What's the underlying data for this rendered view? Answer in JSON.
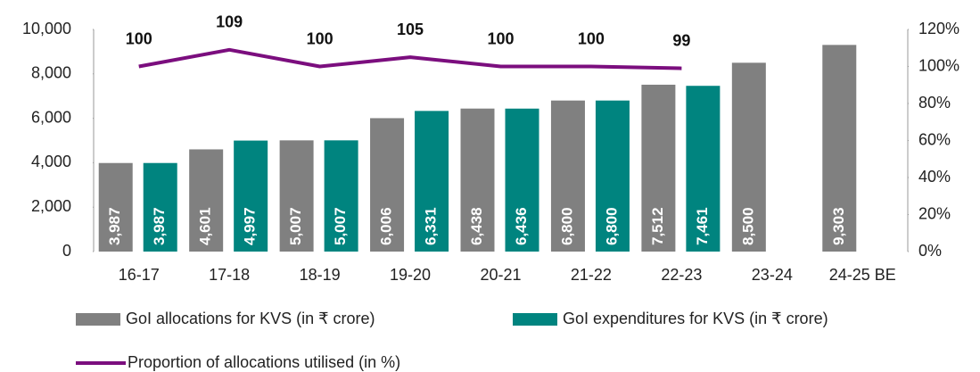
{
  "chart_data": {
    "type": "bar",
    "categories": [
      "16-17",
      "17-18",
      "18-19",
      "19-20",
      "20-21",
      "21-22",
      "22-23",
      "23-24",
      "24-25 BE"
    ],
    "series": [
      {
        "name": "GoI allocations for KVS (in ₹ crore)",
        "type": "bar",
        "color": "#808080",
        "values": [
          3987,
          4601,
          5007,
          6006,
          6438,
          6800,
          7512,
          8500,
          9303
        ],
        "value_labels": [
          "3,987",
          "4,601",
          "5,007",
          "6,006",
          "6,438",
          "6,800",
          "7,512",
          "8,500",
          "9,303"
        ]
      },
      {
        "name": "GoI expenditures for KVS (in ₹ crore)",
        "type": "bar",
        "color": "#00847f",
        "values": [
          3987,
          4997,
          5007,
          6331,
          6436,
          6800,
          7461,
          null,
          null
        ],
        "value_labels": [
          "3,987",
          "4,997",
          "5,007",
          "6,331",
          "6,436",
          "6,800",
          "7,461",
          null,
          null
        ]
      },
      {
        "name": "Proportion of allocations utilised (in %)",
        "type": "line",
        "axis": "y2",
        "color": "#7b0e7e",
        "values": [
          100,
          109,
          100,
          105,
          100,
          100,
          99,
          null,
          null
        ]
      }
    ],
    "ylim": [
      0,
      10000
    ],
    "yticks": [
      0,
      {
        "value": 2000,
        "label": "2,000"
      },
      {
        "value": 4000,
        "label": "4,000"
      },
      {
        "value": 6000,
        "label": "6,000"
      },
      {
        "value": 8000,
        "label": "8,000"
      },
      {
        "value": 10000,
        "label": "10,000"
      }
    ],
    "y2lim": [
      0,
      120
    ],
    "y2ticks": [
      {
        "value": 0,
        "label": "0%"
      },
      {
        "value": 20,
        "label": "20%"
      },
      {
        "value": 40,
        "label": "40%"
      },
      {
        "value": 60,
        "label": "60%"
      },
      {
        "value": 80,
        "label": "80%"
      },
      {
        "value": 100,
        "label": "100%"
      },
      {
        "value": 120,
        "label": "120%"
      }
    ],
    "grid": false
  }
}
